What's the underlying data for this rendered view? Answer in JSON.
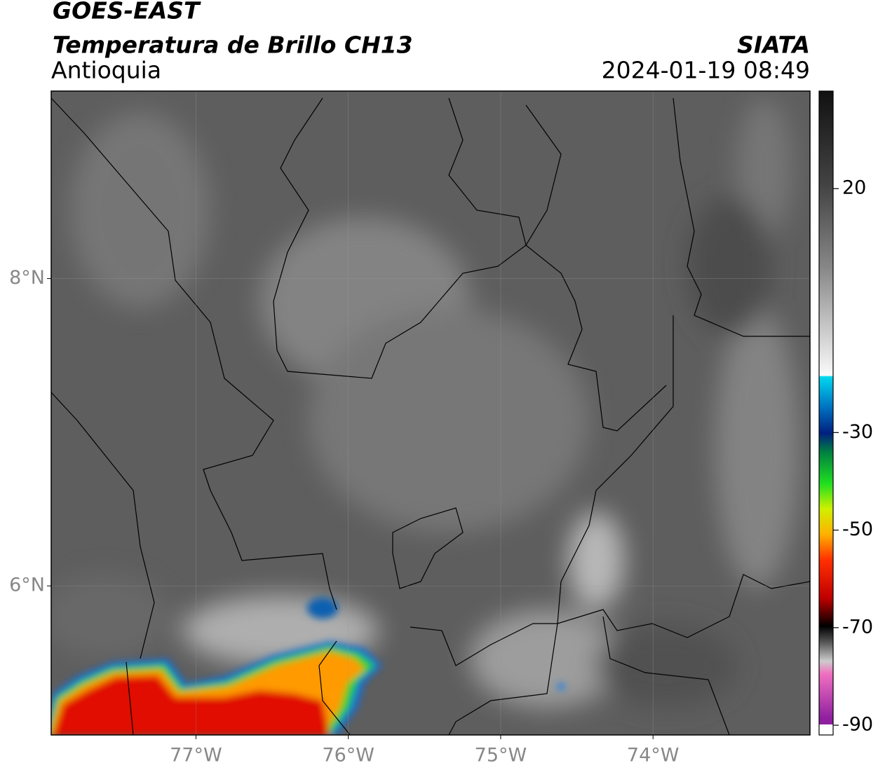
{
  "header": {
    "agency": "GOES-EAST",
    "product": "Temperatura de Brillo CH13",
    "region": "Antioquia",
    "source": "SIATA",
    "timestamp": "2024-01-19 08:49"
  },
  "map": {
    "lon_range": [
      -77.95,
      -72.97
    ],
    "lat_range": [
      5.03,
      9.22
    ],
    "lon_ticks": [
      {
        "value": -77,
        "label": "77°W"
      },
      {
        "value": -76,
        "label": "76°W"
      },
      {
        "value": -75,
        "label": "75°W"
      },
      {
        "value": -74,
        "label": "74°W"
      }
    ],
    "lat_ticks": [
      {
        "value": 8,
        "label": "8°N"
      },
      {
        "value": 6,
        "label": "6°N"
      }
    ]
  },
  "colorbar": {
    "range": [
      40,
      -92
    ],
    "ticks": [
      20,
      -30,
      -50,
      -70,
      -90
    ]
  }
}
